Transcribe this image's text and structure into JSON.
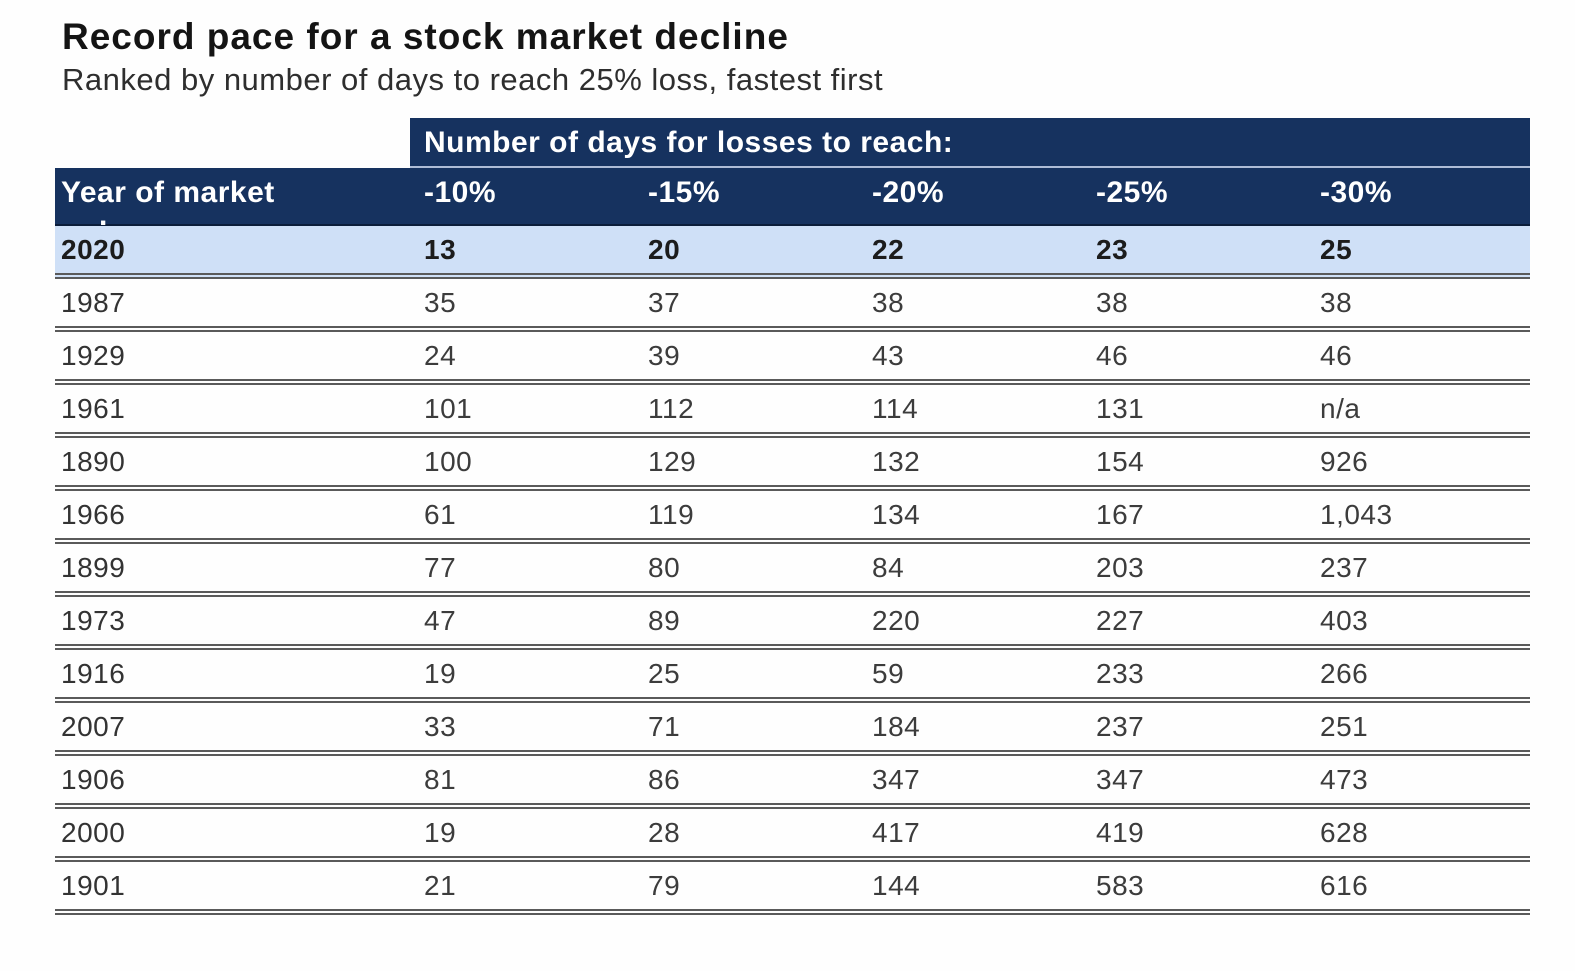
{
  "chart_data": {
    "type": "table",
    "title": "Record pace for a stock market decline",
    "subtitle": "Ranked by number of days to reach 25% loss, fastest first",
    "group_header": "Number of days for losses to reach:",
    "row_header_label": "Year of market",
    "row_header_sub": ".",
    "columns": [
      "-10%",
      "-15%",
      "-20%",
      "-25%",
      "-30%"
    ],
    "rows": [
      {
        "year": "2020",
        "values": [
          "13",
          "20",
          "22",
          "23",
          "25"
        ],
        "highlight": true
      },
      {
        "year": "1987",
        "values": [
          "35",
          "37",
          "38",
          "38",
          "38"
        ],
        "highlight": false
      },
      {
        "year": "1929",
        "values": [
          "24",
          "39",
          "43",
          "46",
          "46"
        ],
        "highlight": false
      },
      {
        "year": "1961",
        "values": [
          "101",
          "112",
          "114",
          "131",
          "n/a"
        ],
        "highlight": false
      },
      {
        "year": "1890",
        "values": [
          "100",
          "129",
          "132",
          "154",
          "926"
        ],
        "highlight": false
      },
      {
        "year": "1966",
        "values": [
          "61",
          "119",
          "134",
          "167",
          "1,043"
        ],
        "highlight": false
      },
      {
        "year": "1899",
        "values": [
          "77",
          "80",
          "84",
          "203",
          "237"
        ],
        "highlight": false
      },
      {
        "year": "1973",
        "values": [
          "47",
          "89",
          "220",
          "227",
          "403"
        ],
        "highlight": false
      },
      {
        "year": "1916",
        "values": [
          "19",
          "25",
          "59",
          "233",
          "266"
        ],
        "highlight": false
      },
      {
        "year": "2007",
        "values": [
          "33",
          "71",
          "184",
          "237",
          "251"
        ],
        "highlight": false
      },
      {
        "year": "1906",
        "values": [
          "81",
          "86",
          "347",
          "347",
          "473"
        ],
        "highlight": false
      },
      {
        "year": "2000",
        "values": [
          "19",
          "28",
          "417",
          "419",
          "628"
        ],
        "highlight": false
      },
      {
        "year": "1901",
        "values": [
          "21",
          "79",
          "144",
          "583",
          "616"
        ],
        "highlight": false
      }
    ],
    "colors": {
      "header_navy": "#16325f",
      "highlight_row_blue": "#cfe0f7",
      "separator_gray": "#5a5a5a"
    }
  }
}
